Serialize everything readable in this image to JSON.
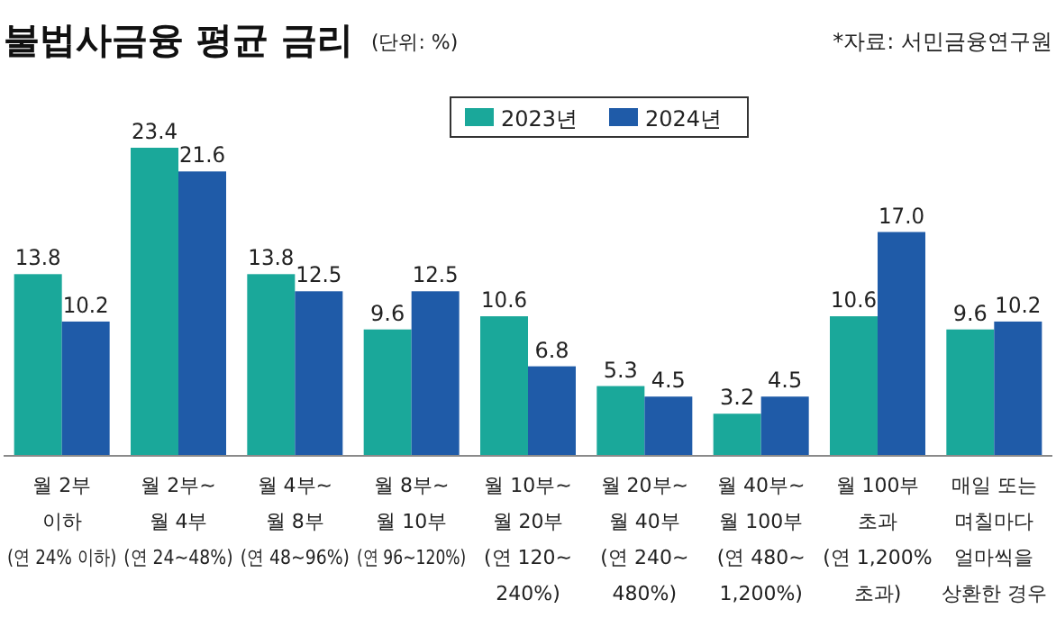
{
  "chart_data": {
    "type": "bar",
    "title": "불법사금융 평균 금리",
    "subtitle": "(단위: %)",
    "annotations": [
      "*자료: 서민금융연구원"
    ],
    "categories": [
      "월 2부\n이하\n(연 24% 이하)",
      "월 2부~\n월 4부\n(연 24~48%)",
      "월 4부~\n월 8부\n(연 48~96%)",
      "월 8부~\n월 10부\n(연 96~120%)",
      "월 10부~\n월 20부\n(연 120~\n240%)",
      "월 20부~\n월 40부\n(연 240~\n480%)",
      "월 40부~\n월 100부\n(연 480~\n1,200%)",
      "월 100부\n초과\n(연 1,200%\n초과)",
      "매일 또는\n며칠마다\n얼마씩을\n상환한 경우"
    ],
    "series": [
      {
        "name": "2023년",
        "color": "#1aa89a",
        "values": [
          13.8,
          23.4,
          13.8,
          9.6,
          10.6,
          5.3,
          3.2,
          10.6,
          9.6
        ],
        "value_labels": [
          "13.8",
          "23.4",
          "13.8",
          "9.6",
          "10.6",
          "5.3",
          "3.2",
          "10.6",
          "9.6"
        ]
      },
      {
        "name": "2024년",
        "color": "#1f5ba8",
        "values": [
          10.2,
          21.6,
          12.5,
          12.5,
          6.8,
          4.5,
          4.5,
          17.0,
          10.2
        ],
        "value_labels": [
          "10.2",
          "21.6",
          "12.5",
          "12.5",
          "6.8",
          "4.5",
          "4.5",
          "17.0",
          "10.2"
        ]
      }
    ],
    "relative": false,
    "legend": "top"
  }
}
